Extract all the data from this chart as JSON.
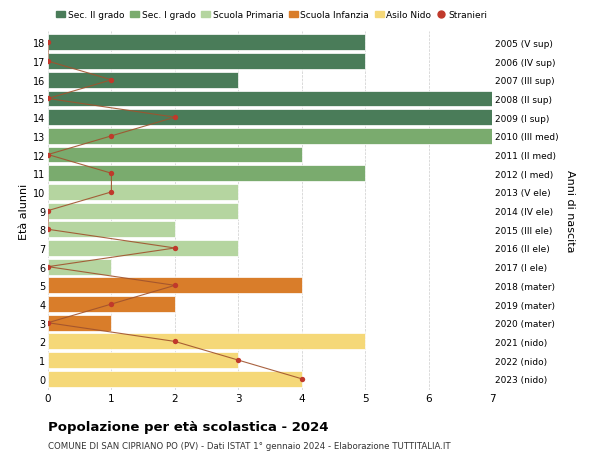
{
  "ages": [
    18,
    17,
    16,
    15,
    14,
    13,
    12,
    11,
    10,
    9,
    8,
    7,
    6,
    5,
    4,
    3,
    2,
    1,
    0
  ],
  "right_labels": [
    "2005 (V sup)",
    "2006 (IV sup)",
    "2007 (III sup)",
    "2008 (II sup)",
    "2009 (I sup)",
    "2010 (III med)",
    "2011 (II med)",
    "2012 (I med)",
    "2013 (V ele)",
    "2014 (IV ele)",
    "2015 (III ele)",
    "2016 (II ele)",
    "2017 (I ele)",
    "2018 (mater)",
    "2019 (mater)",
    "2020 (mater)",
    "2021 (nido)",
    "2022 (nido)",
    "2023 (nido)"
  ],
  "bar_values": [
    5,
    5,
    3,
    7,
    7,
    7,
    4,
    5,
    3,
    3,
    2,
    3,
    1,
    4,
    2,
    1,
    5,
    3,
    4
  ],
  "bar_colors": [
    "#4a7c59",
    "#4a7c59",
    "#4a7c59",
    "#4a7c59",
    "#4a7c59",
    "#7aab6e",
    "#7aab6e",
    "#7aab6e",
    "#b5d5a0",
    "#b5d5a0",
    "#b5d5a0",
    "#b5d5a0",
    "#b5d5a0",
    "#d97d2a",
    "#d97d2a",
    "#d97d2a",
    "#f5d878",
    "#f5d878",
    "#f5d878"
  ],
  "stranieri_values": [
    0,
    0,
    1,
    0,
    2,
    1,
    0,
    1,
    1,
    0,
    0,
    2,
    0,
    2,
    1,
    0,
    2,
    3,
    4
  ],
  "title": "Popolazione per età scolastica - 2024",
  "subtitle": "COMUNE DI SAN CIPRIANO PO (PV) - Dati ISTAT 1° gennaio 2024 - Elaborazione TUTTITALIA.IT",
  "ylabel": "Età alunni",
  "right_ylabel": "Anni di nascita",
  "xlim": [
    0,
    7
  ],
  "legend_labels": [
    "Sec. II grado",
    "Sec. I grado",
    "Scuola Primaria",
    "Scuola Infanzia",
    "Asilo Nido",
    "Stranieri"
  ],
  "legend_colors": [
    "#4a7c59",
    "#7aab6e",
    "#b5d5a0",
    "#d97d2a",
    "#f5d878",
    "#c0392b"
  ],
  "stranieri_color": "#c0392b",
  "stranieri_line_color": "#a0522d",
  "bg_color": "#ffffff",
  "bar_height": 0.85,
  "grid_color": "#cccccc"
}
